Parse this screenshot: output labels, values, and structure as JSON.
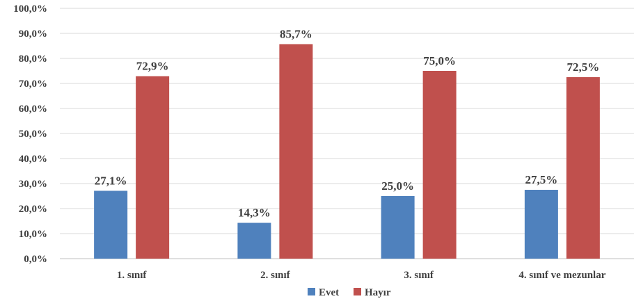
{
  "chart_data": {
    "type": "bar",
    "categories": [
      "1. sınıf",
      "2. sınıf",
      "3. sınıf",
      "4. sınıf ve mezunlar"
    ],
    "series": [
      {
        "name": "Evet",
        "color": "#4f81bd",
        "values": [
          27.1,
          14.3,
          25.0,
          27.5
        ],
        "labels": [
          "27,1%",
          "14,3%",
          "25,0%",
          "27,5%"
        ]
      },
      {
        "name": "Hayır",
        "color": "#c0504d",
        "values": [
          72.9,
          85.7,
          75.0,
          72.5
        ],
        "labels": [
          "72,9%",
          "85,7%",
          "75,0%",
          "72,5%"
        ]
      }
    ],
    "yticks": [
      0,
      10,
      20,
      30,
      40,
      50,
      60,
      70,
      80,
      90,
      100
    ],
    "ytick_labels": [
      "0,0%",
      "10,0%",
      "20,0%",
      "30,0%",
      "40,0%",
      "50,0%",
      "60,0%",
      "70,0%",
      "80,0%",
      "90,0%",
      "100,0%"
    ],
    "ylim": [
      0,
      100
    ],
    "grid": true,
    "legend": "bottom-center"
  }
}
